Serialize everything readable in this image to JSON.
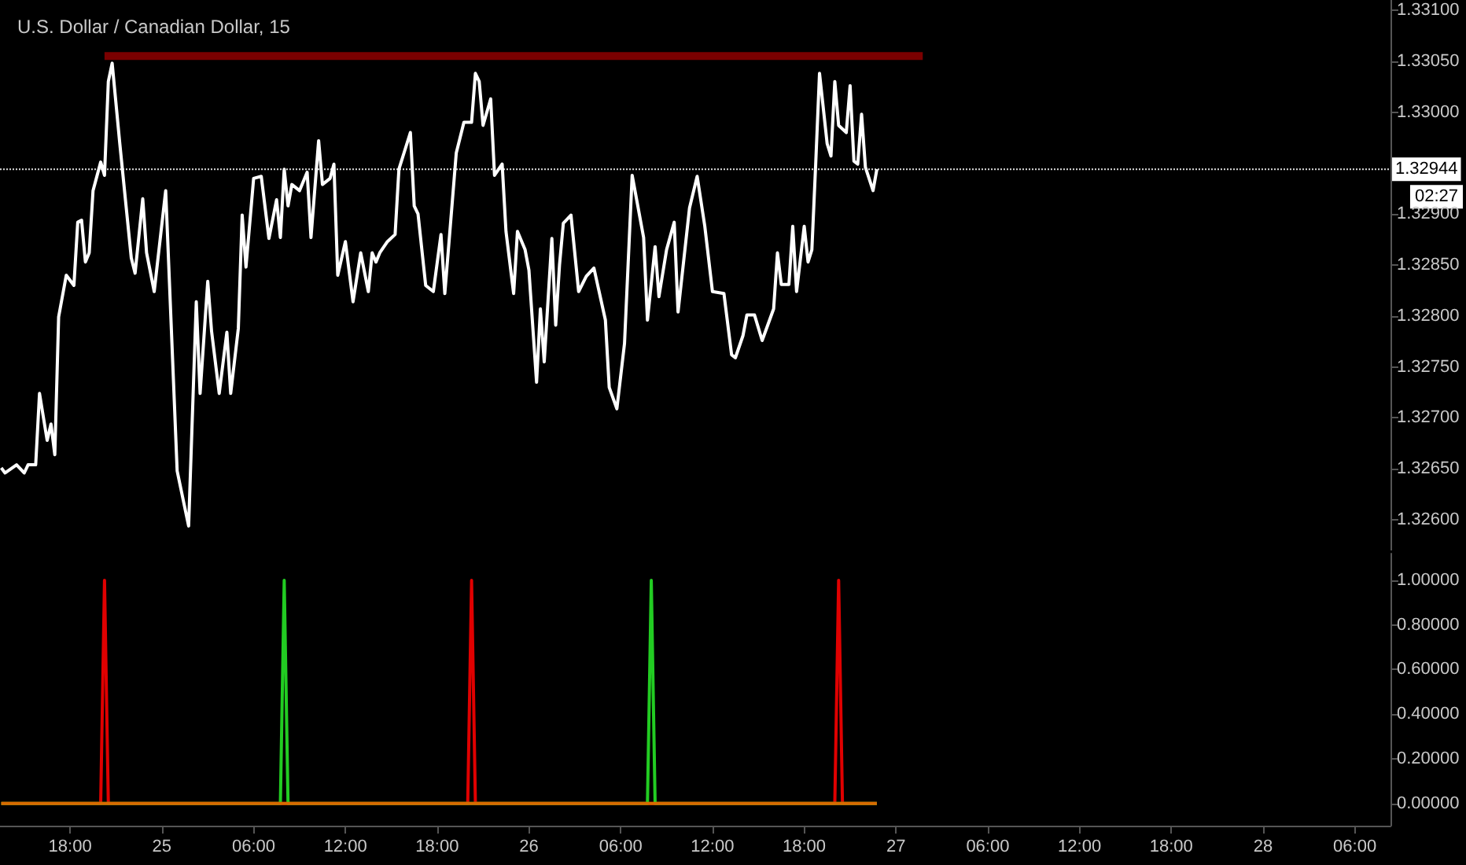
{
  "chart_data": [
    {
      "type": "line",
      "title": "U.S. Dollar / Canadian Dollar, 15",
      "xlim": [
        "--06-24T13:25",
        "--06-28T08:20"
      ],
      "ylim": [
        1.3257,
        1.3311
      ],
      "yticks": [
        {
          "value": 1.326,
          "label": "1.32600"
        },
        {
          "value": 1.3265,
          "label": "1.32650"
        },
        {
          "value": 1.327,
          "label": "1.32700"
        },
        {
          "value": 1.3275,
          "label": "1.32750"
        },
        {
          "value": 1.328,
          "label": "1.32800"
        },
        {
          "value": 1.3285,
          "label": "1.32850"
        },
        {
          "value": 1.329,
          "label": "1.32900"
        },
        {
          "value": 1.3295,
          "label": null
        },
        {
          "value": 1.33,
          "label": "1.33000"
        },
        {
          "value": 1.3305,
          "label": "1.33050"
        },
        {
          "value": 1.331,
          "label": "1.33100"
        }
      ],
      "tick_labels": "y",
      "ref_lines": [
        {
          "axis": "y",
          "value": 1.32944,
          "label": "1.32944",
          "color": "#dddddd",
          "line_style": "dotted"
        }
      ],
      "annotations": [
        "02:27"
      ],
      "series": [
        {
          "color": "#ffffff",
          "x": [
            "--06-24T13:30",
            "--06-24T13:45",
            "--06-24T14:30",
            "--06-24T15:00",
            "--06-24T15:15",
            "--06-24T15:45",
            "--06-24T16:00",
            "--06-24T16:30",
            "--06-24T16:45",
            "--06-24T17:00",
            "--06-24T17:15",
            "--06-24T17:45",
            "--06-24T18:15",
            "--06-24T18:30",
            "--06-24T18:45",
            "--06-24T19:00",
            "--06-24T19:15",
            "--06-24T19:30",
            "--06-24T20:00",
            "--06-24T20:15",
            "--06-24T20:30",
            "--06-24T20:45",
            "--06-24T21:15",
            "--06-24T22:00",
            "--06-24T22:15",
            "--06-24T22:45",
            "--06-24T23:00",
            "--06-24T23:30",
            "--06-25T00:15",
            "--06-25T01:00",
            "--06-25T01:45",
            "--06-25T02:15",
            "--06-25T02:30",
            "--06-25T03:00",
            "--06-25T03:15",
            "--06-25T03:45",
            "--06-25T04:15",
            "--06-25T04:30",
            "--06-25T05:00",
            "--06-25T05:15",
            "--06-25T05:30",
            "--06-25T06:00",
            "--06-25T06:30",
            "--06-25T07:00",
            "--06-25T07:30",
            "--06-25T07:45",
            "--06-25T08:00",
            "--06-25T08:15",
            "--06-25T08:30",
            "--06-25T09:00",
            "--06-25T09:30",
            "--06-25T09:45",
            "--06-25T10:15",
            "--06-25T10:30",
            "--06-25T11:00",
            "--06-25T11:15",
            "--06-25T11:30",
            "--06-25T12:00",
            "--06-25T12:30",
            "--06-25T13:00",
            "--06-25T13:30",
            "--06-25T13:45",
            "--06-25T14:00",
            "--06-25T14:15",
            "--06-25T14:45",
            "--06-25T15:15",
            "--06-25T15:30",
            "--06-25T16:15",
            "--06-25T16:30",
            "--06-25T16:45",
            "--06-25T17:15",
            "--06-25T17:45",
            "--06-25T18:15",
            "--06-25T18:30",
            "--06-25T19:15",
            "--06-25T19:45",
            "--06-25T20:15",
            "--06-25T20:30",
            "--06-25T20:45",
            "--06-25T21:00",
            "--06-25T21:30",
            "--06-25T21:45",
            "--06-25T22:15",
            "--06-25T22:30",
            "--06-25T23:00",
            "--06-25T23:15",
            "--06-25T23:45",
            "--06-26T00:00",
            "--06-26T00:30",
            "--06-26T00:45",
            "--06-26T01:00",
            "--06-26T01:30",
            "--06-26T01:45",
            "--06-26T02:00",
            "--06-26T02:15",
            "--06-26T02:45",
            "--06-26T03:15",
            "--06-26T03:45",
            "--06-26T04:15",
            "--06-26T05:00",
            "--06-26T05:15",
            "--06-26T05:45",
            "--06-26T06:15",
            "--06-26T06:45",
            "--06-26T07:30",
            "--06-26T07:45",
            "--06-26T08:15",
            "--06-26T08:30",
            "--06-26T09:00",
            "--06-26T09:30",
            "--06-26T09:45",
            "--06-26T10:30",
            "--06-26T11:00",
            "--06-26T11:30",
            "--06-26T12:00",
            "--06-26T12:45",
            "--06-26T13:15",
            "--06-26T13:30",
            "--06-26T14:00",
            "--06-26T14:15",
            "--06-26T14:45",
            "--06-26T15:15",
            "--06-26T16:00",
            "--06-26T16:15",
            "--06-26T16:30",
            "--06-26T17:00",
            "--06-26T17:15",
            "--06-26T17:30",
            "--06-26T18:00",
            "--06-26T18:15",
            "--06-26T18:30",
            "--06-26T18:45",
            "--06-26T19:00",
            "--06-26T19:30",
            "--06-26T19:45",
            "--06-26T20:00",
            "--06-26T20:15",
            "--06-26T20:45",
            "--06-26T21:00",
            "--06-26T21:15",
            "--06-26T21:30",
            "--06-26T21:45",
            "--06-26T22:00",
            "--06-26T22:30",
            "--06-26T22:45"
          ],
          "values": [
            1.32651,
            1.32646,
            1.32654,
            1.32646,
            1.32654,
            1.32654,
            1.32724,
            1.32678,
            1.32694,
            1.32664,
            1.32799,
            1.3284,
            1.3283,
            1.32892,
            1.32894,
            1.32853,
            1.32862,
            1.32923,
            1.32951,
            1.32938,
            1.3303,
            1.33048,
            1.32969,
            1.32857,
            1.32842,
            1.32915,
            1.32862,
            1.32824,
            1.32923,
            1.32648,
            1.32594,
            1.32814,
            1.32724,
            1.32834,
            1.32785,
            1.32724,
            1.32784,
            1.32724,
            1.32788,
            1.32899,
            1.32848,
            1.32935,
            1.32937,
            1.32876,
            1.32914,
            1.32877,
            1.32944,
            1.32908,
            1.32929,
            1.32923,
            1.32941,
            1.32877,
            1.32972,
            1.32929,
            1.32935,
            1.32949,
            1.3284,
            1.32873,
            1.32814,
            1.32862,
            1.32824,
            1.32862,
            1.32853,
            1.32862,
            1.32873,
            1.3288,
            1.32944,
            1.3298,
            1.32908,
            1.329,
            1.3283,
            1.32824,
            1.3288,
            1.32822,
            1.3296,
            1.3299,
            1.3299,
            1.33038,
            1.3303,
            1.32987,
            1.33013,
            1.32938,
            1.32949,
            1.32883,
            1.32822,
            1.32883,
            1.32865,
            1.32845,
            1.32735,
            1.32807,
            1.32755,
            1.32876,
            1.32791,
            1.3285,
            1.32891,
            1.32899,
            1.32824,
            1.32839,
            1.32847,
            1.32796,
            1.3273,
            1.32709,
            1.32773,
            1.32938,
            1.32877,
            1.32796,
            1.32868,
            1.32819,
            1.32865,
            1.32892,
            1.32804,
            1.32906,
            1.32937,
            1.32888,
            1.32824,
            1.32822,
            1.32762,
            1.32759,
            1.32781,
            1.32801,
            1.32801,
            1.32776,
            1.32807,
            1.32862,
            1.32831,
            1.32831,
            1.32888,
            1.32824,
            1.32888,
            1.32853,
            1.32865,
            1.32949,
            1.33038,
            1.32969,
            1.32957,
            1.3303,
            1.32987,
            1.3298,
            1.33026,
            1.32952,
            1.32949,
            1.32998,
            1.32946,
            1.32923,
            1.32944
          ]
        },
        {
          "color": "#7a0000",
          "x": [
            "--06-24T20:15",
            "--06-27T01:45"
          ],
          "values": [
            1.33055,
            1.33055
          ]
        }
      ]
    },
    {
      "type": "line",
      "xlim": [
        "--06-24T13:25",
        "--06-28T08:20"
      ],
      "xticks": [
        {
          "value": "--06-24T18:00",
          "label": "18:00"
        },
        {
          "value": "--06-25T00:00",
          "label": "25"
        },
        {
          "value": "--06-25T06:00",
          "label": "06:00"
        },
        {
          "value": "--06-25T12:00",
          "label": "12:00"
        },
        {
          "value": "--06-25T18:00",
          "label": "18:00"
        },
        {
          "value": "--06-26T00:00",
          "label": "26"
        },
        {
          "value": "--06-26T06:00",
          "label": "06:00"
        },
        {
          "value": "--06-26T12:00",
          "label": "12:00"
        },
        {
          "value": "--06-26T18:00",
          "label": "18:00"
        },
        {
          "value": "--06-27T00:00",
          "label": "27"
        },
        {
          "value": "--06-27T06:00",
          "label": "06:00"
        },
        {
          "value": "--06-27T12:00",
          "label": "12:00"
        },
        {
          "value": "--06-27T18:00",
          "label": "18:00"
        },
        {
          "value": "--06-28T00:00",
          "label": "28"
        },
        {
          "value": "--06-28T06:00",
          "label": "06:00"
        }
      ],
      "ylim": [
        -0.1,
        1.12
      ],
      "yticks": [
        {
          "value": 0,
          "label": "0.00000"
        },
        {
          "value": 0.2,
          "label": "0.20000"
        },
        {
          "value": 0.4,
          "label": "0.40000"
        },
        {
          "value": 0.6,
          "label": "0.60000"
        },
        {
          "value": 0.8,
          "label": "0.80000"
        },
        {
          "value": 1,
          "label": "1.00000"
        }
      ],
      "series": [
        {
          "color": "#e00000",
          "x": [
            "--06-24T13:30",
            "--06-24T20:00",
            "--06-24T20:15",
            "--06-24T20:30",
            "--06-25T20:00",
            "--06-25T20:15",
            "--06-25T20:30",
            "--06-26T20:00",
            "--06-26T20:15",
            "--06-26T20:30",
            "--06-26T22:45"
          ],
          "values": [
            0,
            0,
            1,
            0,
            0,
            1,
            0,
            0,
            1,
            0,
            0
          ]
        },
        {
          "color": "#22cc22",
          "x": [
            "--06-24T13:30",
            "--06-25T07:45",
            "--06-25T08:00",
            "--06-25T08:15",
            "--06-26T07:45",
            "--06-26T08:00",
            "--06-26T08:15",
            "--06-26T22:45"
          ],
          "values": [
            0,
            0,
            1,
            0,
            0,
            1,
            0,
            0
          ]
        },
        {
          "color": "#d86a00",
          "x": [
            "--06-24T13:30",
            "--06-26T22:45"
          ],
          "values": [
            0,
            0
          ]
        }
      ]
    }
  ]
}
